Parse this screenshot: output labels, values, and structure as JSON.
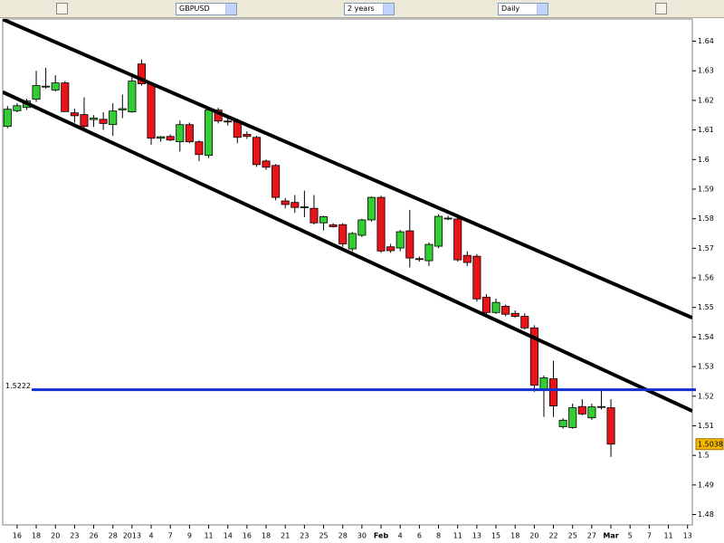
{
  "toolbar": {
    "symbol": "GBPUSD",
    "period": "2 years",
    "interval": "Daily"
  },
  "chart_data": {
    "type": "candlestick",
    "categories": [
      null,
      "16",
      null,
      "18",
      null,
      "20",
      null,
      "23",
      null,
      "26",
      null,
      "28",
      null,
      "2013",
      null,
      "4",
      null,
      "7",
      null,
      "9",
      null,
      "11",
      null,
      "14",
      null,
      "16",
      null,
      "18",
      null,
      "21",
      null,
      "23",
      null,
      "25",
      null,
      "28",
      null,
      "30",
      null,
      "Feb",
      null,
      "4",
      null,
      "6",
      null,
      "8",
      null,
      "11",
      null,
      "13",
      null,
      "15",
      null,
      "18",
      null,
      "20",
      null,
      "22",
      null,
      "25",
      null,
      "27",
      null,
      "Mar",
      null,
      "5",
      null,
      "7",
      null,
      "11",
      null,
      "13"
    ],
    "open": [
      1.6112,
      1.6165,
      1.6176,
      1.6204,
      1.6245,
      1.6235,
      1.6259,
      1.6158,
      1.6152,
      1.6135,
      1.6136,
      1.6118,
      1.6168,
      1.6161,
      1.6323,
      1.6256,
      1.6072,
      1.6078,
      1.606,
      1.6118,
      1.606,
      1.6014,
      1.6167,
      1.613,
      1.6128,
      1.6085,
      1.6075,
      1.5995,
      1.598,
      1.586,
      1.5855,
      1.5838,
      1.5835,
      1.5786,
      1.5779,
      1.578,
      1.5698,
      1.5744,
      1.5796,
      1.5872,
      1.5705,
      1.5701,
      1.5759,
      1.5665,
      1.5658,
      1.5707,
      1.58,
      1.5799,
      1.5676,
      1.5673,
      1.5535,
      1.5483,
      1.5504,
      1.548,
      1.547,
      1.5431,
      1.5222,
      1.5259,
      1.5097,
      1.5094,
      1.5165,
      1.5127,
      1.5162,
      1.5161,
      null,
      null,
      null,
      null,
      null,
      null,
      null,
      null
    ],
    "high": [
      1.6181,
      1.619,
      1.6205,
      1.63,
      1.631,
      1.6285,
      1.6265,
      1.6172,
      1.621,
      1.615,
      1.616,
      1.619,
      1.622,
      1.6285,
      1.6338,
      1.6262,
      1.608,
      1.6085,
      1.6132,
      1.6125,
      1.6065,
      1.6175,
      1.6175,
      1.615,
      1.6138,
      1.6095,
      1.608,
      1.6,
      1.5985,
      1.587,
      1.588,
      1.5895,
      1.588,
      1.581,
      1.5785,
      1.5785,
      1.5755,
      1.58,
      1.5875,
      1.5878,
      1.5715,
      1.5762,
      1.583,
      1.5672,
      1.572,
      1.5815,
      1.581,
      1.5805,
      1.569,
      1.568,
      1.5545,
      1.553,
      1.551,
      1.549,
      1.548,
      1.544,
      1.527,
      1.532,
      1.5125,
      1.5175,
      1.519,
      1.5175,
      1.522,
      1.519,
      null,
      null,
      null,
      null,
      null,
      null,
      null,
      null
    ],
    "low": [
      1.6106,
      1.616,
      1.6168,
      1.6195,
      1.624,
      1.623,
      1.6162,
      1.6125,
      1.6102,
      1.611,
      1.61,
      1.608,
      1.614,
      1.6158,
      1.625,
      1.605,
      1.606,
      1.6062,
      1.6027,
      1.6055,
      1.5995,
      1.6005,
      1.6122,
      1.6115,
      1.6055,
      1.607,
      1.5975,
      1.5965,
      1.5862,
      1.5835,
      1.582,
      1.5805,
      1.578,
      1.576,
      1.577,
      1.5705,
      1.569,
      1.5738,
      1.579,
      1.5685,
      1.5685,
      1.569,
      1.5635,
      1.5655,
      1.564,
      1.57,
      1.5795,
      1.5655,
      1.564,
      1.552,
      1.547,
      1.5478,
      1.547,
      1.5465,
      1.5425,
      1.5215,
      1.513,
      1.513,
      1.509,
      1.509,
      1.5135,
      1.512,
      1.5155,
      1.4995,
      null,
      null,
      null,
      null,
      null,
      null,
      null,
      null
    ],
    "close": [
      1.617,
      1.6182,
      1.6198,
      1.625,
      1.6248,
      1.6259,
      1.6162,
      1.6148,
      1.6112,
      1.614,
      1.6122,
      1.6164,
      1.6172,
      1.6265,
      1.6256,
      1.6072,
      1.6077,
      1.6066,
      1.6118,
      1.606,
      1.6017,
      1.6167,
      1.613,
      1.6127,
      1.6075,
      1.6078,
      1.5983,
      1.5974,
      1.5872,
      1.5848,
      1.5838,
      1.584,
      1.5786,
      1.5807,
      1.5773,
      1.5715,
      1.575,
      1.5796,
      1.5872,
      1.5691,
      1.5692,
      1.5756,
      1.5667,
      1.5662,
      1.5713,
      1.5808,
      1.5802,
      1.5661,
      1.5652,
      1.5529,
      1.5483,
      1.5517,
      1.5477,
      1.547,
      1.5431,
      1.5237,
      1.5262,
      1.5167,
      1.5119,
      1.5161,
      1.514,
      1.5164,
      1.5165,
      1.5038,
      null,
      null,
      null,
      null,
      null,
      null,
      null,
      null
    ],
    "up_color": "#33cc33",
    "down_color": "#e8141a",
    "ylim": [
      1.4765,
      1.6475
    ],
    "yticks": [
      1.48,
      1.49,
      1.5,
      1.51,
      1.52,
      1.53,
      1.54,
      1.55,
      1.56,
      1.57,
      1.58,
      1.59,
      1.6,
      1.61,
      1.62,
      1.63,
      1.64
    ],
    "trend_lines": [
      {
        "y": [
          1.6474,
          1.5465
        ],
        "color": "#000000"
      },
      {
        "y": [
          1.6228,
          1.515
        ],
        "color": "#000000"
      }
    ],
    "hline": {
      "value": 1.5222,
      "color": "#1030d0"
    }
  }
}
